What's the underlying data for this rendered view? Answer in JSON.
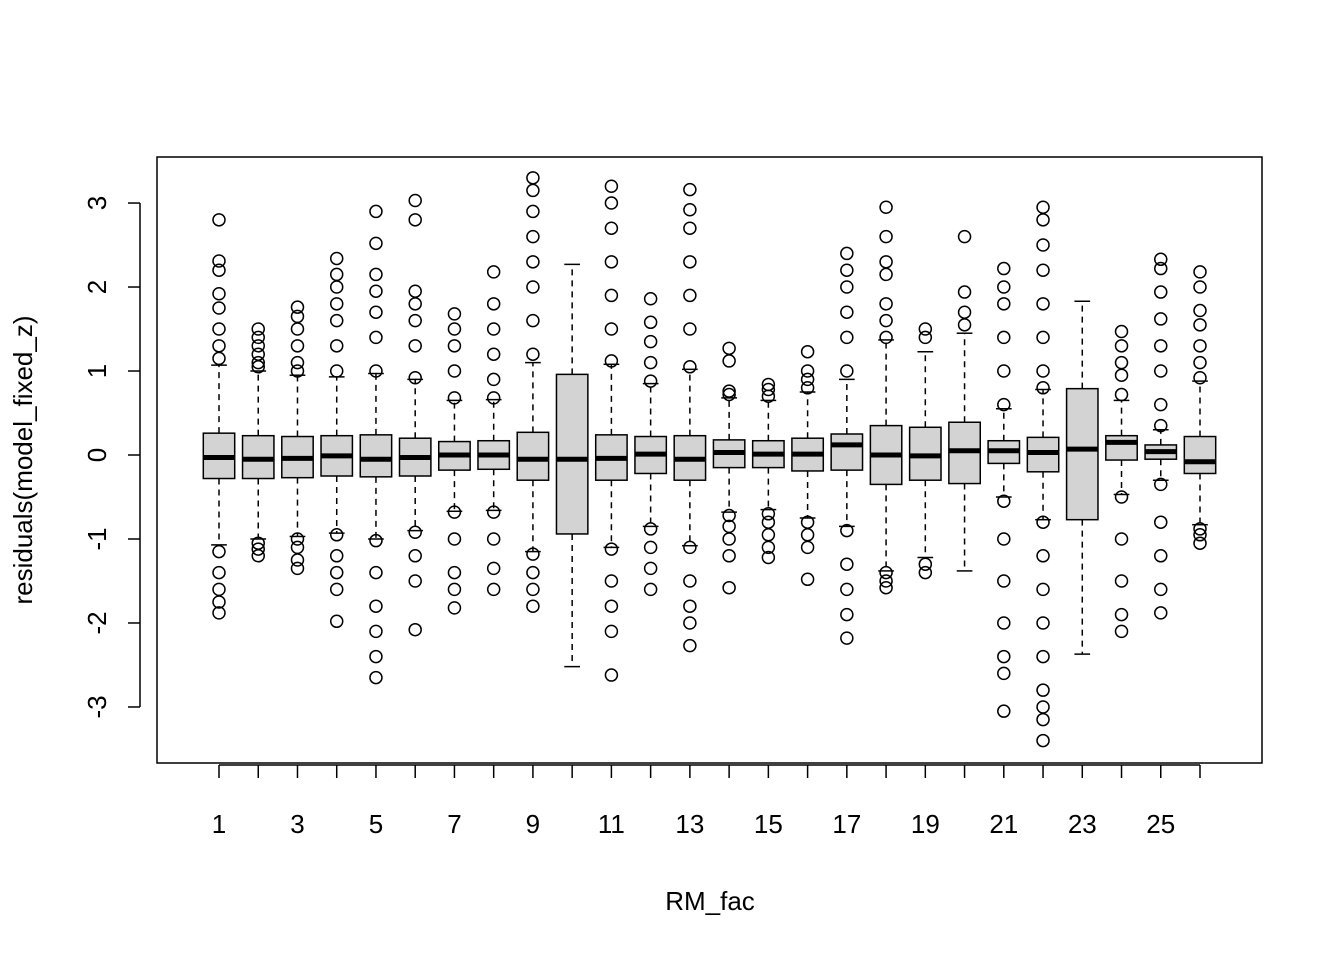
{
  "chart_data": {
    "type": "box",
    "x_label": "RM_fac",
    "y_label": "residuals(model_fixed_z)",
    "categories": [
      "1",
      null,
      "3",
      null,
      "5",
      null,
      "7",
      null,
      "9",
      null,
      "11",
      null,
      "13",
      null,
      "15",
      null,
      "17",
      null,
      "19",
      null,
      "21",
      null,
      "23",
      null,
      "25",
      null
    ],
    "ylim": [
      -3.667,
      3.548
    ],
    "yticks": [
      -3,
      -2,
      -1,
      0,
      1,
      2,
      3
    ],
    "color": "#d3d3d3",
    "boxes": [
      {
        "low": -1.07,
        "q1": -0.28,
        "median": -0.03,
        "q3": 0.26,
        "high": 1.07,
        "outliers": [
          2.8,
          2.31,
          2.2,
          1.92,
          1.75,
          1.5,
          1.3,
          1.15,
          -1.15,
          -1.4,
          -1.6,
          -1.75,
          -1.88
        ]
      },
      {
        "low": -1.0,
        "q1": -0.28,
        "median": -0.05,
        "q3": 0.23,
        "high": 1.0,
        "outliers": [
          1.5,
          1.4,
          1.3,
          1.2,
          1.1,
          1.05,
          -1.05,
          -1.12,
          -1.2
        ]
      },
      {
        "low": -0.97,
        "q1": -0.27,
        "median": -0.04,
        "q3": 0.22,
        "high": 0.95,
        "outliers": [
          1.76,
          1.65,
          1.5,
          1.3,
          1.1,
          1.0,
          -1.0,
          -1.1,
          -1.25,
          -1.35
        ]
      },
      {
        "low": -0.93,
        "q1": -0.25,
        "median": -0.01,
        "q3": 0.23,
        "high": 0.93,
        "outliers": [
          2.34,
          2.15,
          2.0,
          1.8,
          1.6,
          1.3,
          1.0,
          -0.95,
          -1.2,
          -1.4,
          -1.6,
          -1.98
        ]
      },
      {
        "low": -1.0,
        "q1": -0.26,
        "median": -0.05,
        "q3": 0.24,
        "high": 0.97,
        "outliers": [
          2.9,
          2.52,
          2.15,
          1.95,
          1.7,
          1.4,
          1.0,
          -1.02,
          -1.4,
          -1.8,
          -2.1,
          -2.4,
          -2.65
        ]
      },
      {
        "low": -0.9,
        "q1": -0.25,
        "median": -0.03,
        "q3": 0.2,
        "high": 0.9,
        "outliers": [
          3.03,
          2.8,
          1.95,
          1.8,
          1.6,
          1.3,
          0.92,
          -0.92,
          -1.2,
          -1.5,
          -2.08
        ]
      },
      {
        "low": -0.67,
        "q1": -0.18,
        "median": 0.0,
        "q3": 0.16,
        "high": 0.65,
        "outliers": [
          1.68,
          1.5,
          1.3,
          1.0,
          0.68,
          -0.68,
          -1.0,
          -1.4,
          -1.6,
          -1.82
        ]
      },
      {
        "low": -0.66,
        "q1": -0.17,
        "median": 0.0,
        "q3": 0.17,
        "high": 0.66,
        "outliers": [
          2.18,
          1.8,
          1.5,
          1.2,
          0.9,
          0.68,
          -0.68,
          -1.0,
          -1.35,
          -1.6
        ]
      },
      {
        "low": -1.15,
        "q1": -0.3,
        "median": -0.05,
        "q3": 0.27,
        "high": 1.1,
        "outliers": [
          3.3,
          3.15,
          2.9,
          2.6,
          2.3,
          2.0,
          1.6,
          1.2,
          -1.18,
          -1.4,
          -1.6,
          -1.8
        ]
      },
      {
        "low": -2.52,
        "q1": -0.94,
        "median": -0.05,
        "q3": 0.96,
        "high": 2.27,
        "outliers": []
      },
      {
        "low": -1.1,
        "q1": -0.3,
        "median": -0.04,
        "q3": 0.24,
        "high": 1.08,
        "outliers": [
          3.2,
          3.0,
          2.7,
          2.3,
          1.9,
          1.5,
          1.12,
          -1.12,
          -1.5,
          -1.8,
          -2.1,
          -2.62
        ]
      },
      {
        "low": -0.85,
        "q1": -0.22,
        "median": 0.01,
        "q3": 0.22,
        "high": 0.85,
        "outliers": [
          1.86,
          1.58,
          1.35,
          1.1,
          0.88,
          -0.88,
          -1.1,
          -1.35,
          -1.6
        ]
      },
      {
        "low": -1.08,
        "q1": -0.3,
        "median": -0.05,
        "q3": 0.23,
        "high": 1.02,
        "outliers": [
          3.16,
          2.92,
          2.7,
          2.3,
          1.9,
          1.5,
          1.05,
          -1.1,
          -1.5,
          -1.8,
          -2.0,
          -2.27
        ]
      },
      {
        "low": -0.68,
        "q1": -0.15,
        "median": 0.03,
        "q3": 0.18,
        "high": 0.68,
        "outliers": [
          1.27,
          1.12,
          0.76,
          0.72,
          -0.72,
          -0.85,
          -1.0,
          -1.2,
          -1.58
        ]
      },
      {
        "low": -0.65,
        "q1": -0.15,
        "median": 0.01,
        "q3": 0.17,
        "high": 0.65,
        "outliers": [
          0.84,
          0.78,
          0.7,
          -0.7,
          -0.8,
          -0.95,
          -1.1,
          -1.22
        ]
      },
      {
        "low": -0.75,
        "q1": -0.19,
        "median": 0.01,
        "q3": 0.2,
        "high": 0.75,
        "outliers": [
          1.23,
          1.0,
          0.9,
          0.8,
          -0.8,
          -0.95,
          -1.1,
          -1.48
        ]
      },
      {
        "low": -0.85,
        "q1": -0.18,
        "median": 0.12,
        "q3": 0.25,
        "high": 0.9,
        "outliers": [
          2.4,
          2.2,
          2.0,
          1.7,
          1.4,
          1.0,
          -0.9,
          -1.3,
          -1.6,
          -1.9,
          -2.18
        ]
      },
      {
        "low": -1.38,
        "q1": -0.35,
        "median": 0.0,
        "q3": 0.35,
        "high": 1.37,
        "outliers": [
          2.95,
          2.6,
          2.3,
          2.15,
          1.8,
          1.6,
          1.4,
          -1.4,
          -1.5,
          -1.58
        ]
      },
      {
        "low": -1.22,
        "q1": -0.3,
        "median": -0.01,
        "q3": 0.33,
        "high": 1.23,
        "outliers": [
          1.5,
          1.4,
          -1.3,
          -1.4
        ]
      },
      {
        "low": -1.38,
        "q1": -0.34,
        "median": 0.05,
        "q3": 0.39,
        "high": 1.45,
        "outliers": [
          2.6,
          1.94,
          1.7,
          1.55
        ]
      },
      {
        "low": -0.5,
        "q1": -0.1,
        "median": 0.05,
        "q3": 0.17,
        "high": 0.55,
        "outliers": [
          2.22,
          2.0,
          1.8,
          1.4,
          1.0,
          0.6,
          -0.55,
          -1.0,
          -1.5,
          -2.0,
          -2.4,
          -2.6,
          -3.05
        ]
      },
      {
        "low": -0.77,
        "q1": -0.2,
        "median": 0.03,
        "q3": 0.21,
        "high": 0.78,
        "outliers": [
          2.95,
          2.8,
          2.5,
          2.2,
          1.8,
          1.4,
          1.0,
          0.8,
          -0.8,
          -1.2,
          -1.6,
          -2.0,
          -2.4,
          -2.8,
          -3.0,
          -3.15,
          -3.4
        ]
      },
      {
        "low": -2.37,
        "q1": -0.77,
        "median": 0.07,
        "q3": 0.79,
        "high": 1.83,
        "outliers": []
      },
      {
        "low": -0.47,
        "q1": -0.06,
        "median": 0.15,
        "q3": 0.23,
        "high": 0.65,
        "outliers": [
          1.47,
          1.3,
          1.1,
          0.95,
          0.72,
          -0.5,
          -1.0,
          -1.5,
          -1.9,
          -2.1
        ]
      },
      {
        "low": -0.3,
        "q1": -0.05,
        "median": 0.04,
        "q3": 0.12,
        "high": 0.3,
        "outliers": [
          2.33,
          2.22,
          1.94,
          1.62,
          1.3,
          1.0,
          0.6,
          0.35,
          -0.35,
          -0.8,
          -1.2,
          -1.6,
          -1.88
        ]
      },
      {
        "low": -0.83,
        "q1": -0.22,
        "median": -0.08,
        "q3": 0.22,
        "high": 0.88,
        "outliers": [
          2.18,
          2.0,
          1.72,
          1.55,
          1.3,
          1.1,
          0.92,
          -0.88,
          -0.95,
          -1.05
        ]
      }
    ]
  }
}
